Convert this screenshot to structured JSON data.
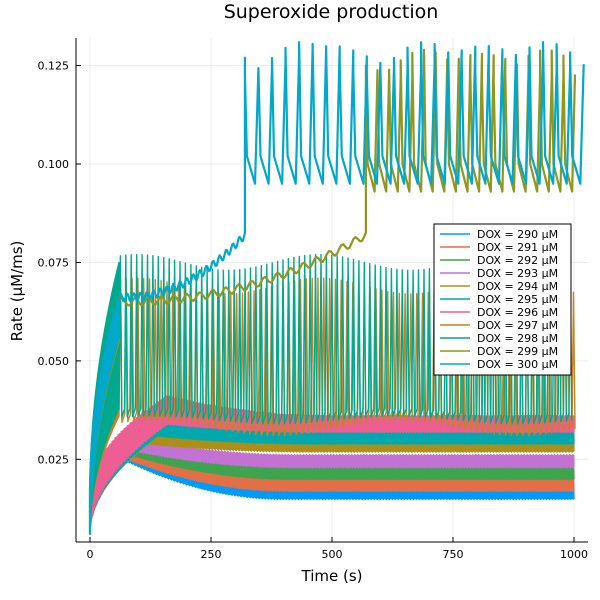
{
  "chart_data": {
    "type": "line",
    "title": "Superoxide production",
    "xlabel": "Time (s)",
    "ylabel": "Rate (μM/ms)",
    "xlim": [
      0,
      1000
    ],
    "ylim": [
      0.004,
      0.132
    ],
    "xticks": [
      0,
      250,
      500,
      750,
      1000
    ],
    "xtick_labels": [
      "0",
      "250",
      "500",
      "750",
      "1000"
    ],
    "yticks": [
      0.025,
      0.05,
      0.075,
      0.1,
      0.125
    ],
    "ytick_labels": [
      "0.025",
      "0.050",
      "0.075",
      "0.100",
      "0.125"
    ],
    "grid": true,
    "legend_position": "right",
    "series": [
      {
        "name": "DOX = 290 μM",
        "color": "#009AFA",
        "peak_time": 70,
        "peak_low": 0.025,
        "peak_high": 0.026,
        "end_low": 0.015,
        "end_high": 0.017
      },
      {
        "name": "DOX = 291 μM",
        "color": "#E36F47",
        "peak_time": 80,
        "peak_low": 0.025,
        "peak_high": 0.027,
        "end_low": 0.017,
        "end_high": 0.02
      },
      {
        "name": "DOX = 292 μM",
        "color": "#3EA44E",
        "peak_time": 90,
        "peak_low": 0.026,
        "peak_high": 0.028,
        "end_low": 0.02,
        "end_high": 0.023
      },
      {
        "name": "DOX = 293 μM",
        "color": "#C371D2",
        "peak_time": 100,
        "peak_low": 0.027,
        "peak_high": 0.03,
        "end_low": 0.023,
        "end_high": 0.026
      },
      {
        "name": "DOX = 294 μM",
        "color": "#AC8E18",
        "peak_time": 120,
        "peak_low": 0.029,
        "peak_high": 0.033,
        "end_low": 0.027,
        "end_high": 0.03
      },
      {
        "name": "DOX = 295 μM",
        "color": "#00A9AD",
        "peak_time": 140,
        "peak_low": 0.031,
        "peak_high": 0.037,
        "end_low": 0.029,
        "end_high": 0.033
      },
      {
        "name": "DOX = 296 μM",
        "color": "#ED5E93",
        "peak_time": 160,
        "peak_low": 0.034,
        "peak_high": 0.041,
        "end_low": 0.032,
        "end_high": 0.036
      },
      {
        "name": "DOX = 297 μM",
        "color": "#C68225",
        "peak_time": 60,
        "peak_low": 0.036,
        "peak_high": 0.069,
        "end_low": 0.035,
        "end_high": 0.069
      },
      {
        "name": "DOX = 298 μM",
        "color": "#00A98D",
        "peak_time": 60,
        "peak_low": 0.038,
        "peak_high": 0.075,
        "end_low": 0.037,
        "end_high": 0.075
      },
      {
        "name": "DOX = 299 μM",
        "color": "#8E971E",
        "peak_time": 60,
        "ramp_start": 0.065,
        "jump_time": 570,
        "osc_low": 0.093,
        "osc_high": 0.125
      },
      {
        "name": "DOX = 300 μM",
        "color": "#00A8CB",
        "peak_time": 60,
        "ramp_start": 0.066,
        "jump_time": 320,
        "osc_low": 0.095,
        "osc_high": 0.127
      }
    ]
  }
}
